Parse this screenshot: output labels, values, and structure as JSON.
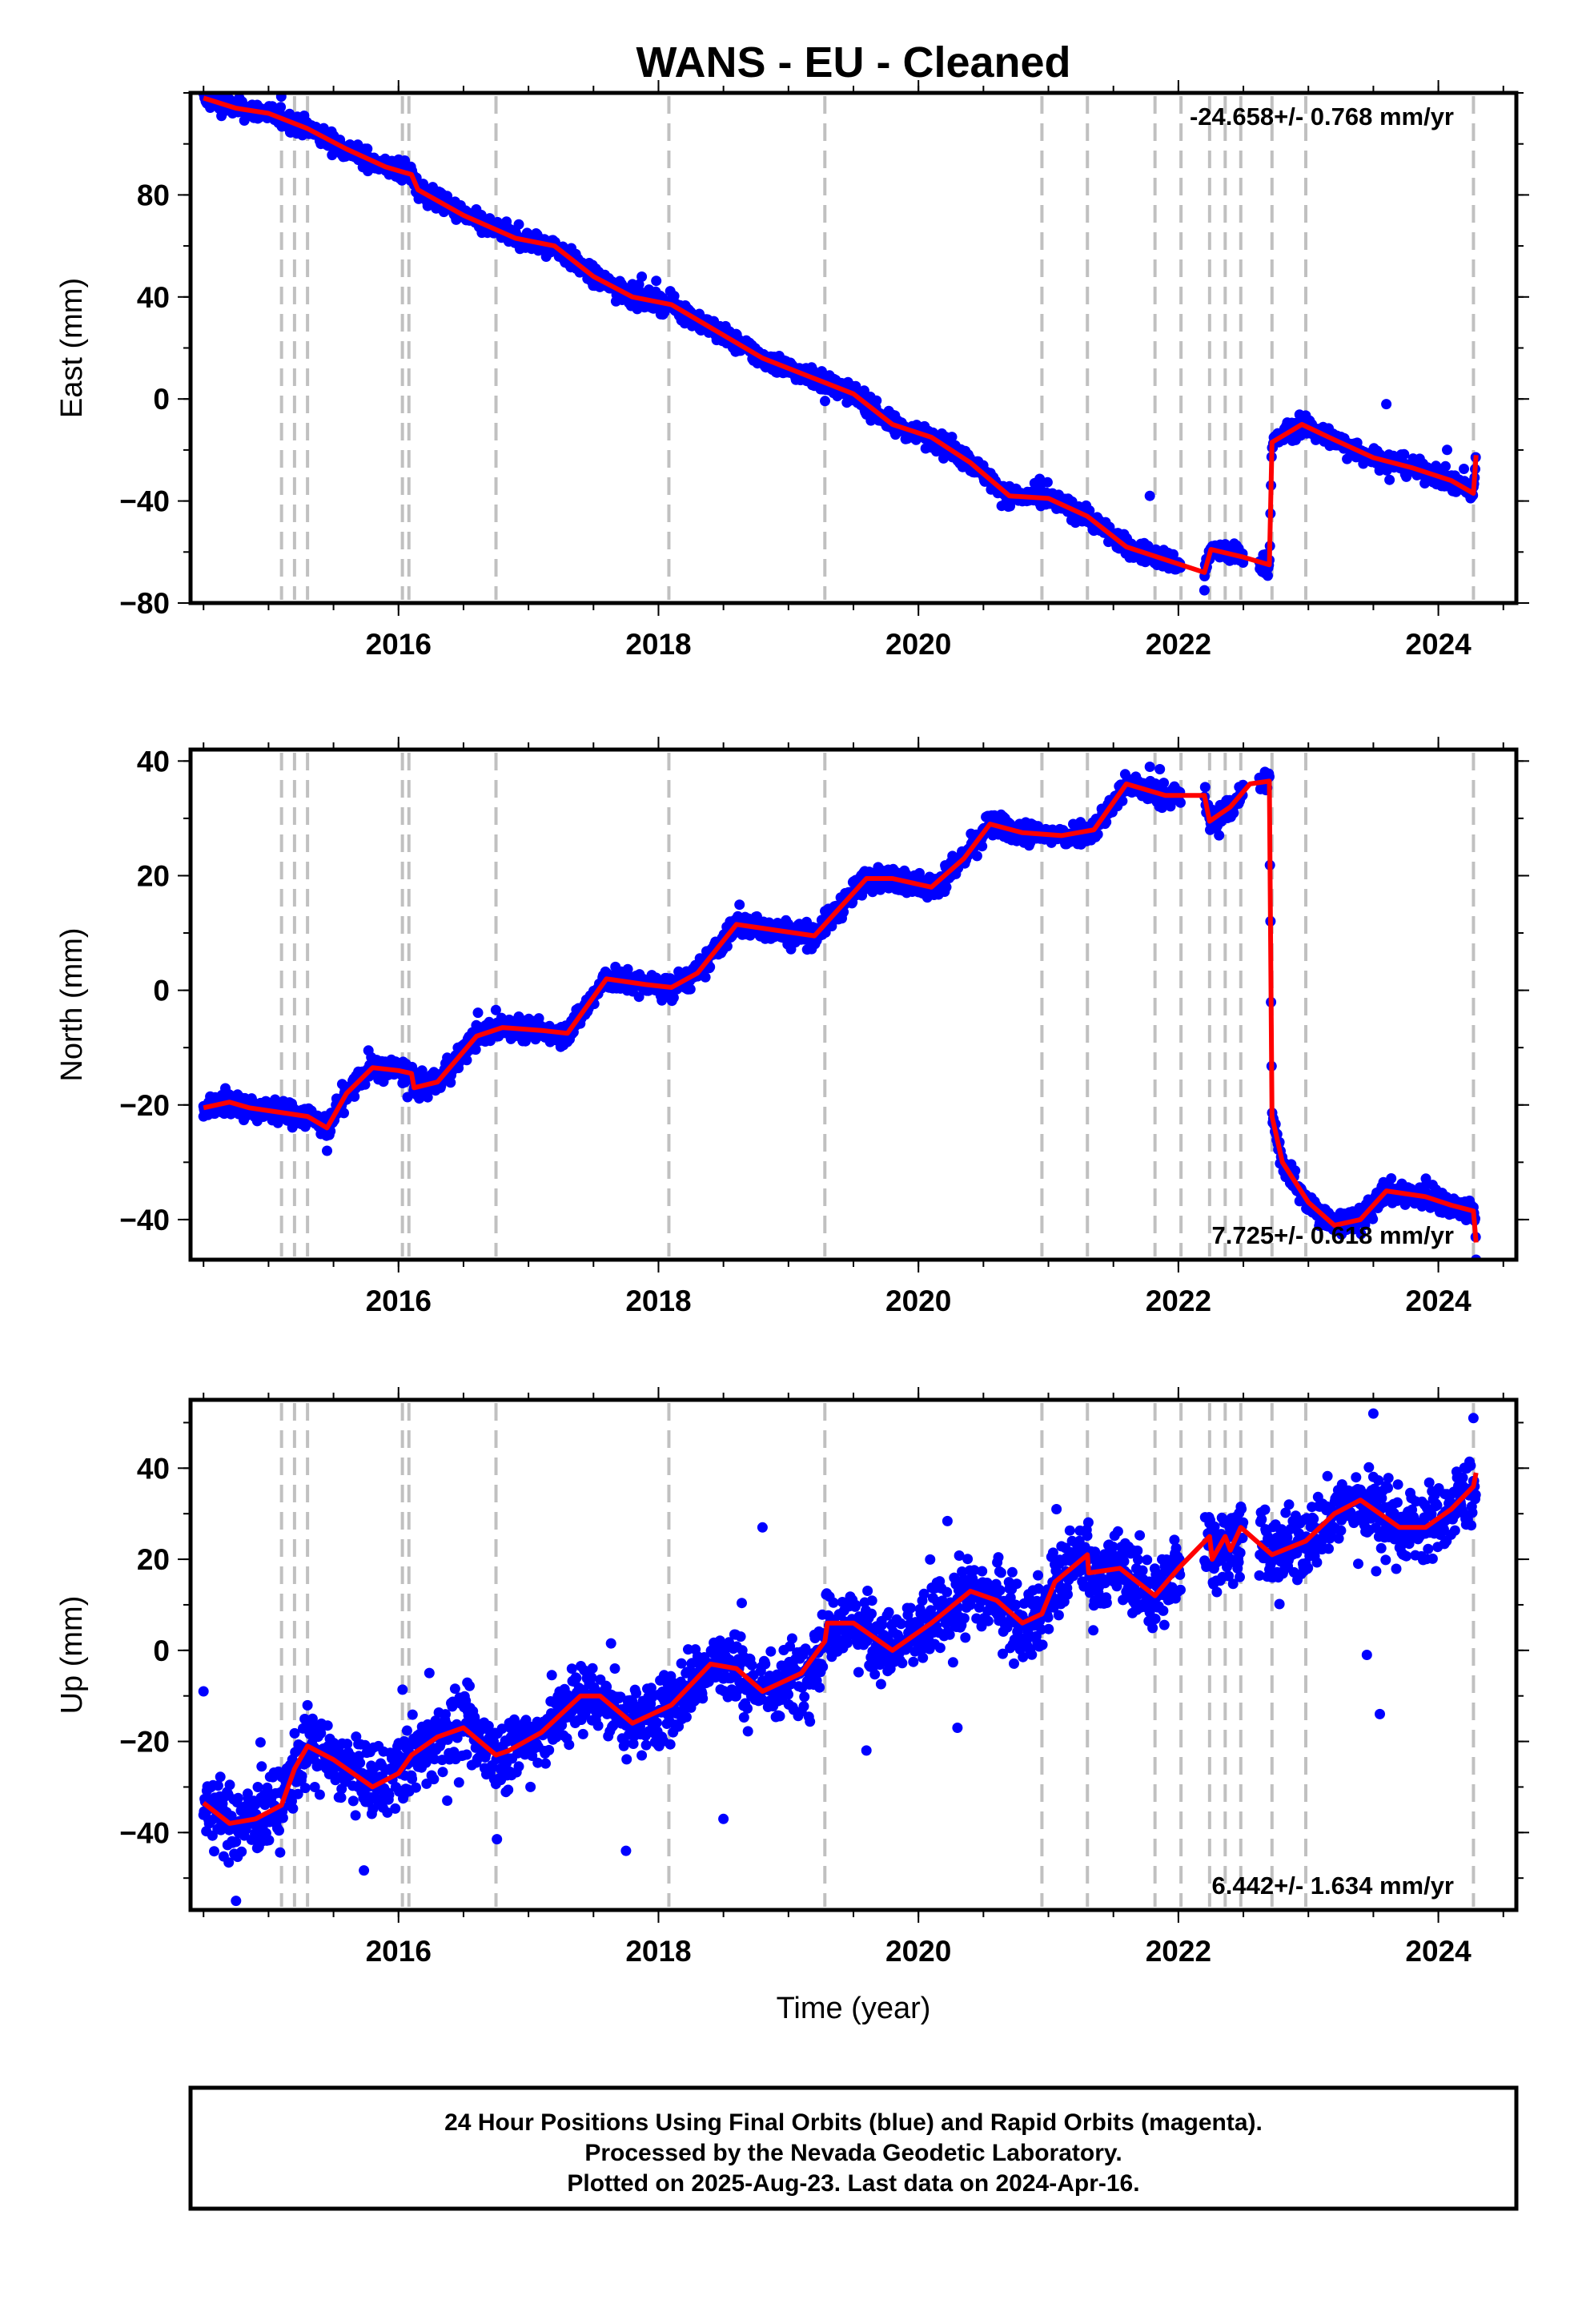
{
  "title": "WANS  - EU - Cleaned",
  "colors": {
    "points": "#0000ff",
    "model": "#ff0000",
    "events": "#c0c0c0",
    "frame": "#000000"
  },
  "footer": {
    "lines": [
      "24 Hour Positions Using Final Orbits (blue) and Rapid Orbits (magenta).",
      "Processed by the Nevada Geodetic Laboratory.",
      "Plotted on 2025-Aug-23. Last data on 2024-Apr-16."
    ]
  },
  "chart_data": [
    {
      "type": "scatter",
      "component": "east",
      "ylabel": "East (mm)",
      "xlabel": "",
      "xlim": [
        2014.4,
        2024.6
      ],
      "ylim": [
        -80,
        120
      ],
      "xticks": [
        2016,
        2018,
        2020,
        2022,
        2024
      ],
      "yticks": [
        -80,
        -40,
        0,
        40,
        80
      ],
      "rate_label": "-24.658+/- 0.768 mm/yr",
      "event_lines": [
        2015.1,
        2015.2,
        2015.3,
        2016.03,
        2016.08,
        2016.75,
        2018.08,
        2019.28,
        2020.95,
        2021.3,
        2021.82,
        2022.02,
        2022.24,
        2022.36,
        2022.48,
        2022.72,
        2022.98,
        2024.27
      ],
      "model": [
        [
          2014.5,
          118
        ],
        [
          2014.75,
          114
        ],
        [
          2015.0,
          112
        ],
        [
          2015.3,
          106
        ],
        [
          2015.6,
          98
        ],
        [
          2015.9,
          91
        ],
        [
          2016.1,
          88
        ],
        [
          2016.15,
          82
        ],
        [
          2016.5,
          72
        ],
        [
          2016.9,
          63
        ],
        [
          2017.2,
          60
        ],
        [
          2017.5,
          48
        ],
        [
          2017.8,
          40
        ],
        [
          2018.1,
          37
        ],
        [
          2018.4,
          28
        ],
        [
          2018.8,
          16
        ],
        [
          2019.2,
          8
        ],
        [
          2019.5,
          2
        ],
        [
          2019.8,
          -10
        ],
        [
          2020.1,
          -15
        ],
        [
          2020.4,
          -25
        ],
        [
          2020.7,
          -38
        ],
        [
          2021.0,
          -39
        ],
        [
          2021.3,
          -46
        ],
        [
          2021.6,
          -58
        ],
        [
          2021.9,
          -63
        ],
        [
          2022.2,
          -68
        ],
        [
          2022.25,
          -59
        ],
        [
          2022.5,
          -62
        ],
        [
          2022.7,
          -65
        ],
        [
          2022.72,
          -17
        ],
        [
          2022.95,
          -10
        ],
        [
          2023.2,
          -16
        ],
        [
          2023.5,
          -23
        ],
        [
          2023.8,
          -27
        ],
        [
          2024.1,
          -32
        ],
        [
          2024.27,
          -37
        ],
        [
          2024.29,
          -22
        ]
      ],
      "extra_points": [
        [
          2021.78,
          -38
        ],
        [
          2022.2,
          -75
        ],
        [
          2023.6,
          -2
        ],
        [
          2018.7,
          22
        ],
        [
          2017.8,
          45
        ]
      ]
    },
    {
      "type": "scatter",
      "component": "north",
      "ylabel": "North (mm)",
      "xlabel": "",
      "xlim": [
        2014.4,
        2024.6
      ],
      "ylim": [
        -47,
        42
      ],
      "xticks": [
        2016,
        2018,
        2020,
        2022,
        2024
      ],
      "yticks": [
        -40,
        -20,
        0,
        20,
        40
      ],
      "rate_label": "7.725+/- 0.618 mm/yr",
      "event_lines": [
        2015.1,
        2015.2,
        2015.3,
        2016.03,
        2016.08,
        2016.75,
        2018.08,
        2019.28,
        2020.95,
        2021.3,
        2021.82,
        2022.02,
        2022.24,
        2022.36,
        2022.48,
        2022.72,
        2022.98,
        2024.27
      ],
      "model": [
        [
          2014.5,
          -20.5
        ],
        [
          2014.7,
          -19.5
        ],
        [
          2014.85,
          -20.5
        ],
        [
          2015.0,
          -21
        ],
        [
          2015.3,
          -22
        ],
        [
          2015.45,
          -24
        ],
        [
          2015.6,
          -18
        ],
        [
          2015.8,
          -13.5
        ],
        [
          2016.0,
          -14
        ],
        [
          2016.1,
          -14.5
        ],
        [
          2016.12,
          -17
        ],
        [
          2016.3,
          -16
        ],
        [
          2016.6,
          -8
        ],
        [
          2016.8,
          -6.5
        ],
        [
          2017.1,
          -7
        ],
        [
          2017.3,
          -7.5
        ],
        [
          2017.6,
          2
        ],
        [
          2017.9,
          1
        ],
        [
          2018.1,
          0.5
        ],
        [
          2018.3,
          3
        ],
        [
          2018.6,
          11.5
        ],
        [
          2018.9,
          10.5
        ],
        [
          2019.2,
          9.5
        ],
        [
          2019.6,
          19.5
        ],
        [
          2019.8,
          19.5
        ],
        [
          2020.1,
          18
        ],
        [
          2020.35,
          23
        ],
        [
          2020.55,
          29
        ],
        [
          2020.8,
          27.5
        ],
        [
          2021.1,
          27
        ],
        [
          2021.35,
          28
        ],
        [
          2021.6,
          36
        ],
        [
          2021.9,
          34
        ],
        [
          2022.2,
          34
        ],
        [
          2022.24,
          29.5
        ],
        [
          2022.4,
          32
        ],
        [
          2022.55,
          36
        ],
        [
          2022.7,
          36.5
        ],
        [
          2022.72,
          -22
        ],
        [
          2022.8,
          -30
        ],
        [
          2023.0,
          -37
        ],
        [
          2023.2,
          -41
        ],
        [
          2023.4,
          -40
        ],
        [
          2023.6,
          -35
        ],
        [
          2023.9,
          -36
        ],
        [
          2024.1,
          -37.5
        ],
        [
          2024.27,
          -38.5
        ],
        [
          2024.29,
          -44
        ]
      ],
      "extra_points": [
        [
          2014.5,
          -22
        ],
        [
          2015.45,
          -28
        ],
        [
          2021.78,
          39
        ],
        [
          2024.29,
          -47
        ]
      ]
    },
    {
      "type": "scatter",
      "component": "up",
      "ylabel": "Up (mm)",
      "xlabel": "Time (year)",
      "xlim": [
        2014.4,
        2024.6
      ],
      "ylim": [
        -57,
        55
      ],
      "xticks": [
        2016,
        2018,
        2020,
        2022,
        2024
      ],
      "yticks": [
        -40,
        -20,
        0,
        20,
        40
      ],
      "rate_label": "6.442+/- 1.634 mm/yr",
      "event_lines": [
        2015.1,
        2015.2,
        2015.3,
        2016.03,
        2016.08,
        2016.75,
        2018.08,
        2019.28,
        2020.95,
        2021.3,
        2021.82,
        2022.02,
        2022.24,
        2022.36,
        2022.48,
        2022.72,
        2022.98,
        2024.27
      ],
      "model": [
        [
          2014.5,
          -33.5
        ],
        [
          2014.7,
          -38
        ],
        [
          2014.9,
          -37
        ],
        [
          2015.1,
          -34
        ],
        [
          2015.2,
          -26
        ],
        [
          2015.3,
          -21
        ],
        [
          2015.5,
          -24
        ],
        [
          2015.8,
          -30
        ],
        [
          2016.0,
          -27
        ],
        [
          2016.1,
          -23
        ],
        [
          2016.3,
          -19
        ],
        [
          2016.5,
          -17
        ],
        [
          2016.75,
          -23
        ],
        [
          2016.85,
          -22
        ],
        [
          2017.1,
          -18
        ],
        [
          2017.4,
          -10
        ],
        [
          2017.55,
          -10
        ],
        [
          2017.8,
          -16
        ],
        [
          2018.1,
          -12
        ],
        [
          2018.4,
          -3
        ],
        [
          2018.6,
          -4
        ],
        [
          2018.8,
          -9
        ],
        [
          2019.1,
          -5
        ],
        [
          2019.28,
          2
        ],
        [
          2019.3,
          6
        ],
        [
          2019.5,
          6
        ],
        [
          2019.8,
          0
        ],
        [
          2020.1,
          6
        ],
        [
          2020.4,
          13
        ],
        [
          2020.6,
          11
        ],
        [
          2020.8,
          6
        ],
        [
          2020.95,
          8
        ],
        [
          2021.05,
          15
        ],
        [
          2021.3,
          21
        ],
        [
          2021.31,
          17
        ],
        [
          2021.55,
          18
        ],
        [
          2021.82,
          12
        ],
        [
          2022.0,
          18
        ],
        [
          2022.24,
          25
        ],
        [
          2022.26,
          20
        ],
        [
          2022.36,
          25
        ],
        [
          2022.4,
          22
        ],
        [
          2022.48,
          27
        ],
        [
          2022.72,
          21
        ],
        [
          2022.98,
          24
        ],
        [
          2023.2,
          30
        ],
        [
          2023.4,
          33
        ],
        [
          2023.7,
          27
        ],
        [
          2023.9,
          27
        ],
        [
          2024.1,
          31
        ],
        [
          2024.27,
          36
        ],
        [
          2024.29,
          39
        ]
      ],
      "extra_points": [
        [
          2014.5,
          -9
        ],
        [
          2014.75,
          -55
        ],
        [
          2017.75,
          -44
        ],
        [
          2018.5,
          -37
        ],
        [
          2018.8,
          27
        ],
        [
          2019.6,
          -22
        ],
        [
          2020.3,
          -17
        ],
        [
          2023.45,
          -1
        ],
        [
          2023.55,
          -14
        ],
        [
          2023.5,
          52
        ],
        [
          2024.27,
          51
        ]
      ]
    }
  ]
}
